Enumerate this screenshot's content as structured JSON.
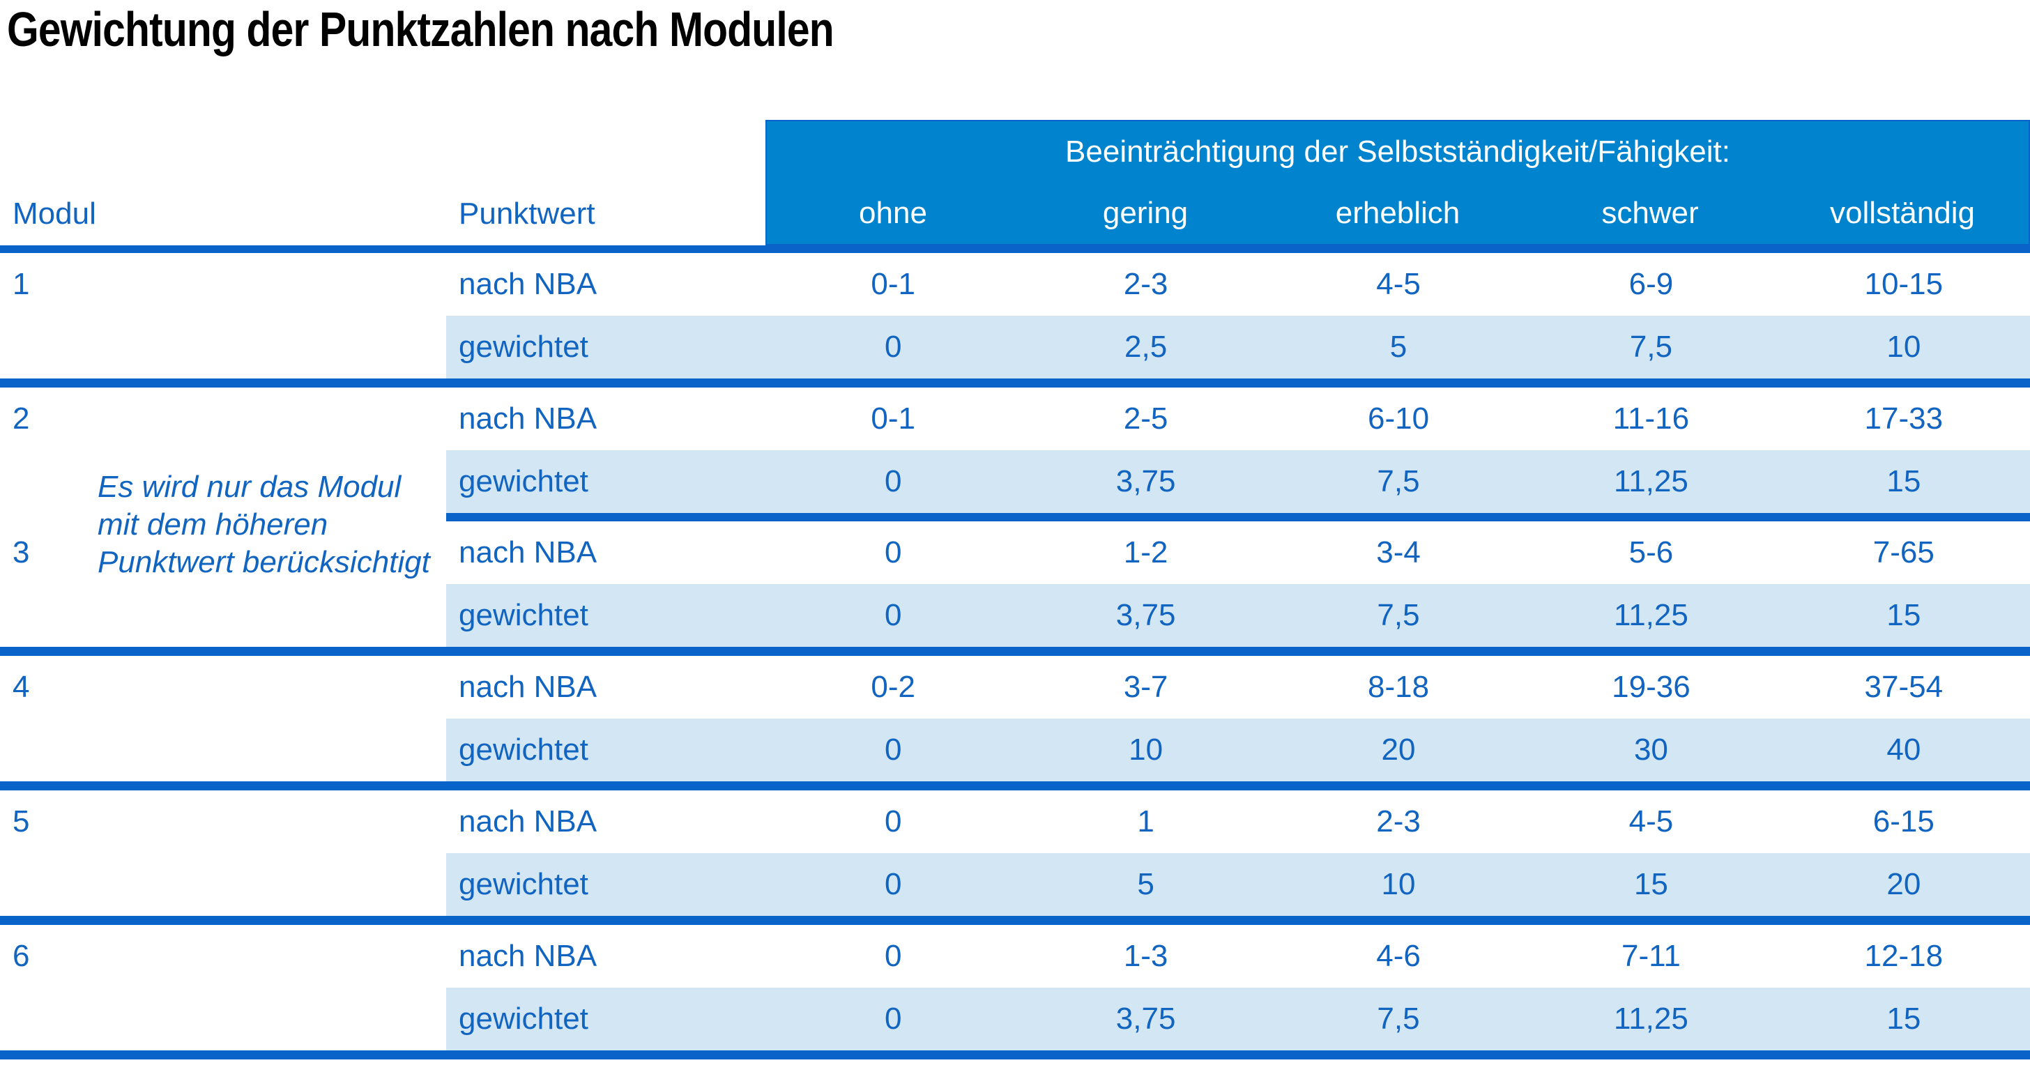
{
  "title": "Gewichtung der Punktzahlen nach Modulen",
  "table": {
    "header": {
      "group_label": "Beeinträchtigung der Selbstständigkeit/Fähigkeit:",
      "col_modul": "Modul",
      "col_punktwert": "Punktwert",
      "severity_levels": [
        "ohne",
        "gering",
        "erheblich",
        "schwer",
        "vollständig"
      ]
    },
    "row_labels": {
      "nba": "nach NBA",
      "weighted": "gewichtet"
    },
    "note_lines": [
      "Es wird nur das Modul",
      "mit dem höheren",
      "Punktwert berücksichtigt"
    ],
    "modules": [
      {
        "nr": "1",
        "nba": [
          "0-1",
          "2-3",
          "4-5",
          "6-9",
          "10-15"
        ],
        "weighted": [
          "0",
          "2,5",
          "5",
          "7,5",
          "10"
        ]
      },
      {
        "nr": "2",
        "nba": [
          "0-1",
          "2-5",
          "6-10",
          "11-16",
          "17-33"
        ],
        "weighted": [
          "0",
          "3,75",
          "7,5",
          "11,25",
          "15"
        ]
      },
      {
        "nr": "3",
        "nba": [
          "0",
          "1-2",
          "3-4",
          "5-6",
          "7-65"
        ],
        "weighted": [
          "0",
          "3,75",
          "7,5",
          "11,25",
          "15"
        ]
      },
      {
        "nr": "4",
        "nba": [
          "0-2",
          "3-7",
          "8-18",
          "19-36",
          "37-54"
        ],
        "weighted": [
          "0",
          "10",
          "20",
          "30",
          "40"
        ]
      },
      {
        "nr": "5",
        "nba": [
          "0",
          "1",
          "2-3",
          "4-5",
          "6-15"
        ],
        "weighted": [
          "0",
          "5",
          "10",
          "15",
          "20"
        ]
      },
      {
        "nr": "6",
        "nba": [
          "0",
          "1-3",
          "4-6",
          "7-11",
          "12-18"
        ],
        "weighted": [
          "0",
          "3,75",
          "7,5",
          "11,25",
          "15"
        ]
      }
    ],
    "colors": {
      "header_background": "#0283CE",
      "separator_line": "#0A63C8",
      "weighted_row_background": "#D3E6F4",
      "text_blue": "#1164C0",
      "title_text": "#000000",
      "header_text": "#FFFFFF"
    }
  }
}
